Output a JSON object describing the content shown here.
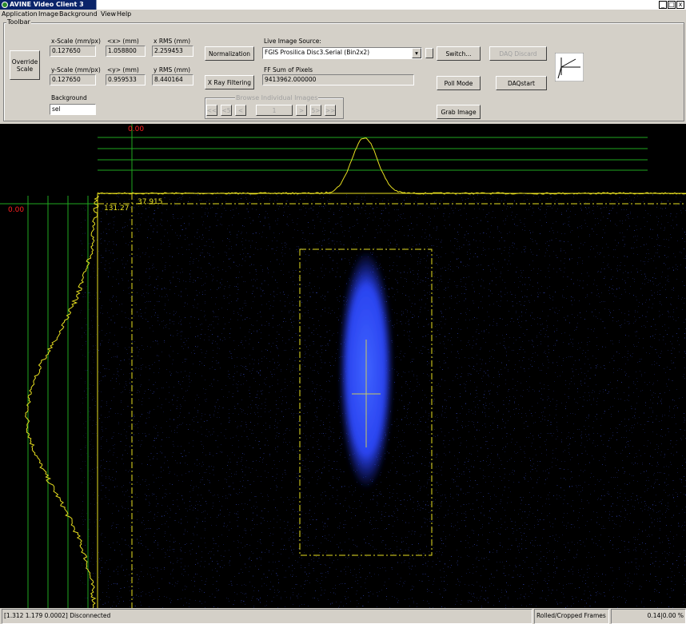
{
  "window": {
    "title": "AVINE Video Client 3",
    "menu": [
      "Application",
      "Image",
      "Background",
      "View",
      "Help"
    ]
  },
  "toolbar": {
    "label": "Toolbar",
    "override_button": "Override Scale",
    "x_scale": {
      "label": "x-Scale (mm/px)",
      "value": "0.127650"
    },
    "x_mean": {
      "label": "<x> (mm)",
      "value": "1.058800"
    },
    "x_rms": {
      "label": "x RMS (mm)",
      "value": "2.259453"
    },
    "y_scale": {
      "label": "y-Scale (mm/px)",
      "value": "0.127650"
    },
    "y_mean": {
      "label": "<y> (mm)",
      "value": "0.959533"
    },
    "y_rms": {
      "label": "y RMS (mm)",
      "value": "8.440164"
    },
    "background": {
      "label": "Background",
      "value": "sel"
    },
    "normalization_button": "Normalization",
    "xray_button": "X Ray Filtering",
    "source": {
      "label": "Live Image Source:",
      "value": "FGIS Prosilica Disc3.Serial (Bin2x2)"
    },
    "sum": {
      "label": "FF Sum of Pixels",
      "value": "9413962.000000"
    },
    "switch_button": "Switch...",
    "daq_discard_button": "DAQ Discard",
    "poll_button": "Poll Mode",
    "daq_start_button": "DAQstart",
    "grab_button": "Grab Image",
    "browse": {
      "label": "Browse Individual Images",
      "buttons": [
        "<<",
        "<5",
        "<",
        "1",
        ">",
        "5>",
        ">>"
      ]
    }
  },
  "image": {
    "top_zero": "0.00",
    "left_zero": "0.00",
    "y_marker": "131.27",
    "x_marker": "37.915"
  },
  "status": {
    "message": "[1.312 1.179 0.0002] Disconnected",
    "frames": "Rolled/Cropped Frames",
    "rate": "0.14|0.00 %"
  }
}
